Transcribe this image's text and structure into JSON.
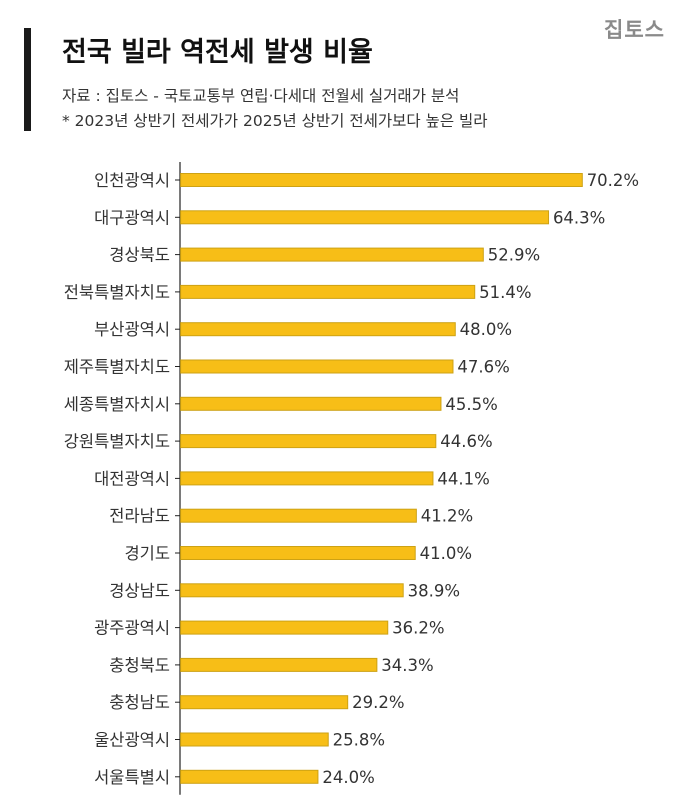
{
  "title": "전국 빌라 역전세 발생 비율",
  "source_note": "자료 : 집토스 - 국토교통부 연립·다세대 전월세 실거래가 분석",
  "footnote": "* 2023년 상반기 전세가가 2025년 상반기 전세가보다 높은 빌라",
  "brand": "집토스",
  "colors": {
    "bar": "#F7BE17",
    "bar_edge": "#CDA214",
    "axis": "#222222",
    "label": "#333333"
  },
  "chart_data": {
    "type": "bar",
    "orientation": "horizontal",
    "categories": [
      "인천광역시",
      "대구광역시",
      "경상북도",
      "전북특별자치도",
      "부산광역시",
      "제주특별자치도",
      "세종특별자치시",
      "강원특별자치도",
      "대전광역시",
      "전라남도",
      "경기도",
      "경상남도",
      "광주광역시",
      "충청북도",
      "충청남도",
      "울산광역시",
      "서울특별시"
    ],
    "values": [
      70.2,
      64.3,
      52.9,
      51.4,
      48.0,
      47.6,
      45.5,
      44.6,
      44.1,
      41.2,
      41.0,
      38.9,
      36.2,
      34.3,
      29.2,
      25.8,
      24.0
    ],
    "value_labels": [
      "70.2%",
      "64.3%",
      "52.9%",
      "51.4%",
      "48.0%",
      "47.6%",
      "45.5%",
      "44.6%",
      "44.1%",
      "41.2%",
      "41.0%",
      "38.9%",
      "36.2%",
      "34.3%",
      "29.2%",
      "25.8%",
      "24.0%"
    ],
    "unit": "%",
    "xlim": [
      0,
      72
    ],
    "grid": false,
    "legend": "none"
  }
}
